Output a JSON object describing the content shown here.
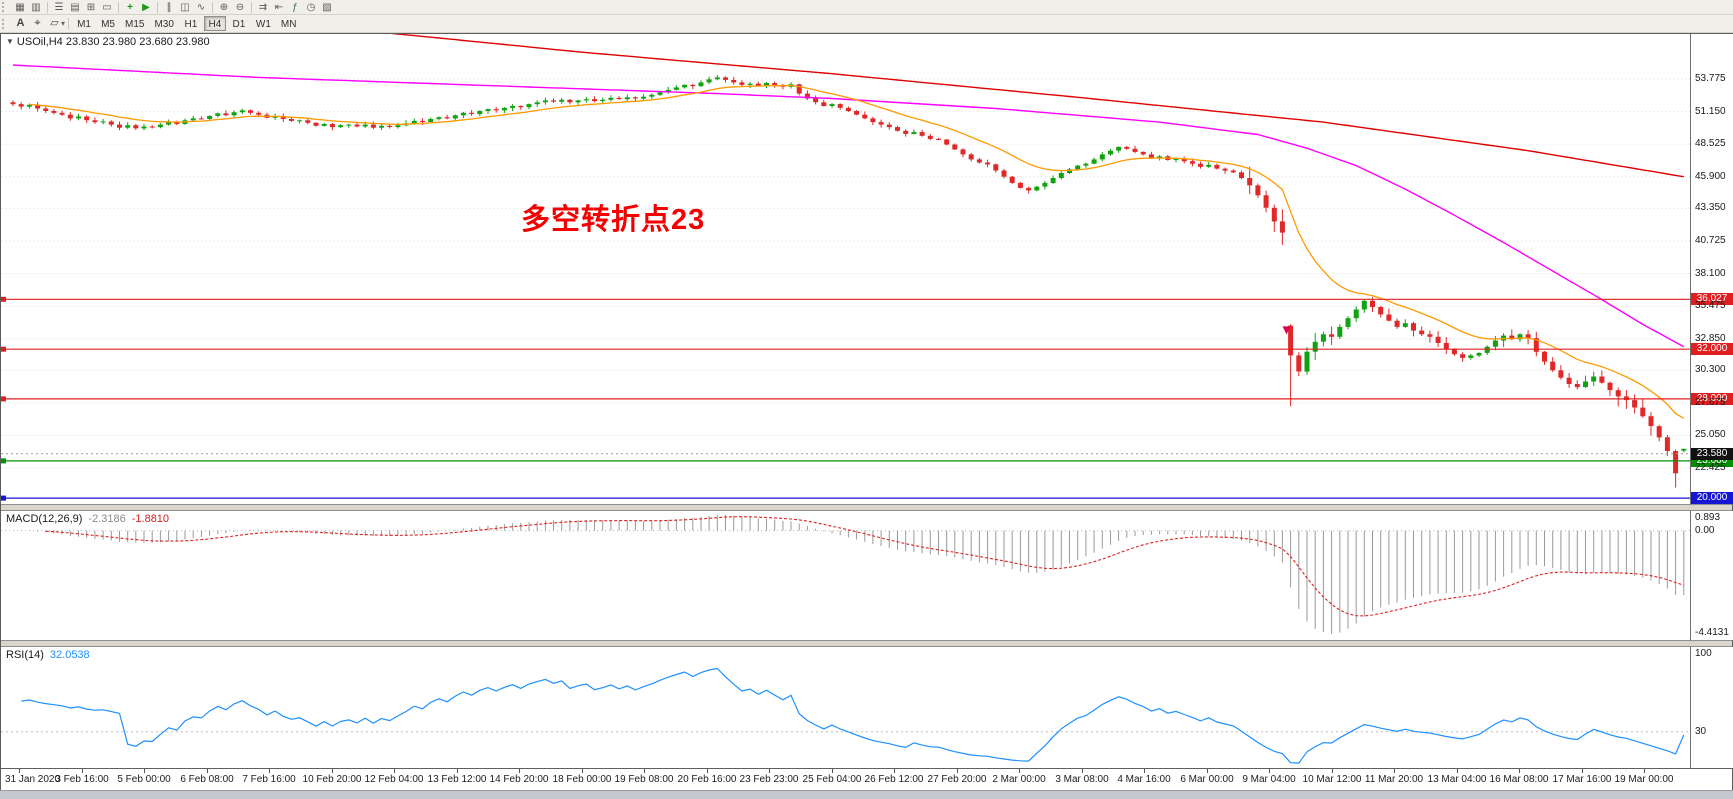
{
  "toolbar": {
    "row1_icons": [
      {
        "name": "new-chart-icon",
        "glyph": "▦",
        "color": "#5a5a5a"
      },
      {
        "name": "profiles-icon",
        "glyph": "▥",
        "color": "#5a5a5a"
      },
      {
        "name": "market-watch-icon",
        "glyph": "☰",
        "color": "#5a5a5a"
      },
      {
        "name": "data-window-icon",
        "glyph": "▤",
        "color": "#5a5a5a"
      },
      {
        "name": "navigator-icon",
        "glyph": "⊞",
        "color": "#5a5a5a"
      },
      {
        "name": "terminal-icon",
        "glyph": "▭",
        "color": "#5a5a5a"
      },
      {
        "name": "new-order-icon",
        "glyph": "+",
        "color": "#1a9a1a"
      },
      {
        "name": "autotrading-icon",
        "glyph": "▶",
        "color": "#1a9a1a"
      },
      {
        "name": "bar-chart-icon",
        "glyph": "∥",
        "color": "#5a5a5a"
      },
      {
        "name": "candlestick-icon",
        "glyph": "◫",
        "color": "#5a5a5a"
      },
      {
        "name": "line-chart-icon",
        "glyph": "∿",
        "color": "#5a5a5a"
      },
      {
        "name": "zoom-in-icon",
        "glyph": "⊕",
        "color": "#5a5a5a"
      },
      {
        "name": "zoom-out-icon",
        "glyph": "⊖",
        "color": "#5a5a5a"
      },
      {
        "name": "auto-scroll-icon",
        "glyph": "⇉",
        "color": "#5a5a5a"
      },
      {
        "name": "chart-shift-icon",
        "glyph": "⇤",
        "color": "#5a5a5a"
      },
      {
        "name": "indicators-icon",
        "glyph": "ƒ",
        "color": "#3a6a3a"
      },
      {
        "name": "periods-icon",
        "glyph": "◷",
        "color": "#5a5a5a"
      },
      {
        "name": "templates-icon",
        "glyph": "▨",
        "color": "#5a5a5a"
      }
    ],
    "row2_tools": [
      {
        "name": "text-label-tool-icon",
        "glyph": "A"
      },
      {
        "name": "crosshair-tool-icon",
        "glyph": "⌖"
      },
      {
        "name": "shapes-dropdown-icon",
        "glyph": "▱"
      }
    ],
    "timeframes": [
      "M1",
      "M5",
      "M15",
      "M30",
      "H1",
      "H4",
      "D1",
      "W1",
      "MN"
    ],
    "active_timeframe": "H4"
  },
  "main_chart": {
    "quote": {
      "symbol": "USOil,H4",
      "ohlc": "23.830 23.980 23.680 23.980"
    },
    "annotation": {
      "text": "多空转折点23",
      "color": "#f40000"
    },
    "price_axis_labels": [
      "53.775",
      "51.150",
      "48.525",
      "45.900",
      "43.350",
      "40.725",
      "38.100",
      "35.475",
      "32.850",
      "30.300",
      "27.675",
      "25.050",
      "22.425"
    ],
    "hlines": [
      {
        "price": 36.027,
        "color": "#e02020",
        "tag": "36.027"
      },
      {
        "price": 32.0,
        "color": "#e02020",
        "tag": "32.000"
      },
      {
        "price": 28.0,
        "color": "#e02020",
        "tag": "28.000"
      },
      {
        "price": 23.0,
        "color": "#009000",
        "tag": "23.000"
      },
      {
        "price": 20.0,
        "color": "#1515d6",
        "tag": "20.000"
      }
    ],
    "bid": {
      "price": 23.58,
      "tag": "23.580",
      "tag_bg": "#111111"
    },
    "time_labels": [
      "31 Jan 2020",
      "3 Feb 16:00",
      "5 Feb 00:00",
      "6 Feb 08:00",
      "7 Feb 16:00",
      "10 Feb 20:00",
      "12 Feb 04:00",
      "13 Feb 12:00",
      "14 Feb 20:00",
      "18 Feb 00:00",
      "19 Feb 08:00",
      "20 Feb 16:00",
      "23 Feb 23:00",
      "25 Feb 04:00",
      "26 Feb 12:00",
      "27 Feb 20:00",
      "2 Mar 00:00",
      "3 Mar 08:00",
      "4 Mar 16:00",
      "6 Mar 00:00",
      "9 Mar 04:00",
      "10 Mar 12:00",
      "11 Mar 20:00",
      "13 Mar 04:00",
      "16 Mar 08:00",
      "17 Mar 16:00",
      "19 Mar 00:00"
    ]
  },
  "macd": {
    "name": "MACD(12,26,9)",
    "value1": "-2.3186",
    "value2": "-1.8810",
    "axis_max": "0.893",
    "axis_zero": "0.00",
    "axis_min": "-4.4131"
  },
  "rsi": {
    "name": "RSI(14)",
    "value": "32.0538",
    "axis_top": "100",
    "axis_level": "30",
    "level": 30
  },
  "chart_data": {
    "type": "candlestick",
    "symbol": "USOil",
    "timeframe": "H4",
    "current_bar": {
      "open": "23.830",
      "high": "23.980",
      "low": "23.680",
      "close": "23.980"
    },
    "colors": {
      "up": "#0fa30f",
      "down": "#e02828",
      "ma_fast": "#ff9900",
      "ma_mid": "#ff00ff",
      "ma_slow": "#e00000",
      "macd_hist": "#9a9a9a",
      "macd_signal": "#e02020",
      "rsi_line": "#1e90ff"
    },
    "closes": [
      51.75,
      51.55,
      51.7,
      51.4,
      51.2,
      51.05,
      50.9,
      50.6,
      50.75,
      50.45,
      50.3,
      50.35,
      50.1,
      49.85,
      50.05,
      49.8,
      49.95,
      49.9,
      50.1,
      50.3,
      50.15,
      50.45,
      50.6,
      50.55,
      50.8,
      51.0,
      50.85,
      51.1,
      51.25,
      51.05,
      50.9,
      50.65,
      50.8,
      50.55,
      50.4,
      50.45,
      50.25,
      50.0,
      50.15,
      49.9,
      50.05,
      50.1,
      49.95,
      50.1,
      49.85,
      50.0,
      49.9,
      50.05,
      50.2,
      50.4,
      50.3,
      50.55,
      50.7,
      50.6,
      50.85,
      51.05,
      50.95,
      51.2,
      51.35,
      51.25,
      51.45,
      51.6,
      51.5,
      51.75,
      51.9,
      52.05,
      51.95,
      52.1,
      51.9,
      52.05,
      52.15,
      52.0,
      52.1,
      52.25,
      52.15,
      52.3,
      52.2,
      52.35,
      52.5,
      52.7,
      52.9,
      53.1,
      53.3,
      53.2,
      53.5,
      53.75,
      53.9,
      53.7,
      53.5,
      53.3,
      53.4,
      53.25,
      53.45,
      53.3,
      53.15,
      53.35,
      52.6,
      52.2,
      51.9,
      51.6,
      51.75,
      51.45,
      51.2,
      50.9,
      50.6,
      50.3,
      50.1,
      49.9,
      49.6,
      49.35,
      49.5,
      49.2,
      48.95,
      48.9,
      48.5,
      48.1,
      47.7,
      47.3,
      47.05,
      46.9,
      46.4,
      45.9,
      45.4,
      45.0,
      44.8,
      45.1,
      45.4,
      45.8,
      46.2,
      46.5,
      46.8,
      46.95,
      47.3,
      47.7,
      48.0,
      48.3,
      48.15,
      47.9,
      47.7,
      47.4,
      47.55,
      47.25,
      47.35,
      47.15,
      46.95,
      46.7,
      46.85,
      46.55,
      46.4,
      46.25,
      45.8,
      45.2,
      44.4,
      43.4,
      42.3,
      41.4,
      31.5,
      30.2,
      31.8,
      32.6,
      33.2,
      33.0,
      33.8,
      34.5,
      35.2,
      35.9,
      35.4,
      34.8,
      34.3,
      33.8,
      34.1,
      33.5,
      33.2,
      33.0,
      32.5,
      32.0,
      31.6,
      31.3,
      31.5,
      31.7,
      32.2,
      32.7,
      33.1,
      32.8,
      33.2,
      32.9,
      31.8,
      31.0,
      30.3,
      29.7,
      29.2,
      28.95,
      29.4,
      29.8,
      29.3,
      28.7,
      28.2,
      27.9,
      27.3,
      26.6,
      25.8,
      24.9,
      23.8,
      22.0,
      23.98
    ],
    "wick_overrides": {
      "86": {
        "high": 54.1
      },
      "124": {
        "low": 44.55
      },
      "156": {
        "open": 33.9,
        "low": 27.4
      },
      "165": {
        "high": 36.03
      },
      "203": {
        "low": 20.85
      },
      "204": {
        "open": 23.83,
        "high": 23.98,
        "low": 23.68
      }
    },
    "ma_slow_anchors": [
      [
        44,
        57.6
      ],
      [
        70,
        55.9
      ],
      [
        100,
        54.2
      ],
      [
        130,
        52.3
      ],
      [
        160,
        50.3
      ],
      [
        185,
        48.0
      ],
      [
        204,
        45.9
      ]
    ],
    "ma_mid_anchors": [
      [
        0,
        54.9
      ],
      [
        30,
        53.9
      ],
      [
        60,
        53.2
      ],
      [
        86,
        52.6
      ],
      [
        100,
        52.2
      ],
      [
        120,
        51.4
      ],
      [
        140,
        50.3
      ],
      [
        152,
        49.3
      ],
      [
        158,
        48.2
      ],
      [
        164,
        46.8
      ],
      [
        170,
        44.9
      ],
      [
        176,
        42.8
      ],
      [
        182,
        40.6
      ],
      [
        188,
        38.3
      ],
      [
        194,
        36.0
      ],
      [
        199,
        34.0
      ],
      [
        204,
        32.2
      ]
    ],
    "markers": [
      {
        "bar": 155.5,
        "price": 33.2,
        "dir": "down",
        "color": "#e0004d"
      }
    ]
  }
}
